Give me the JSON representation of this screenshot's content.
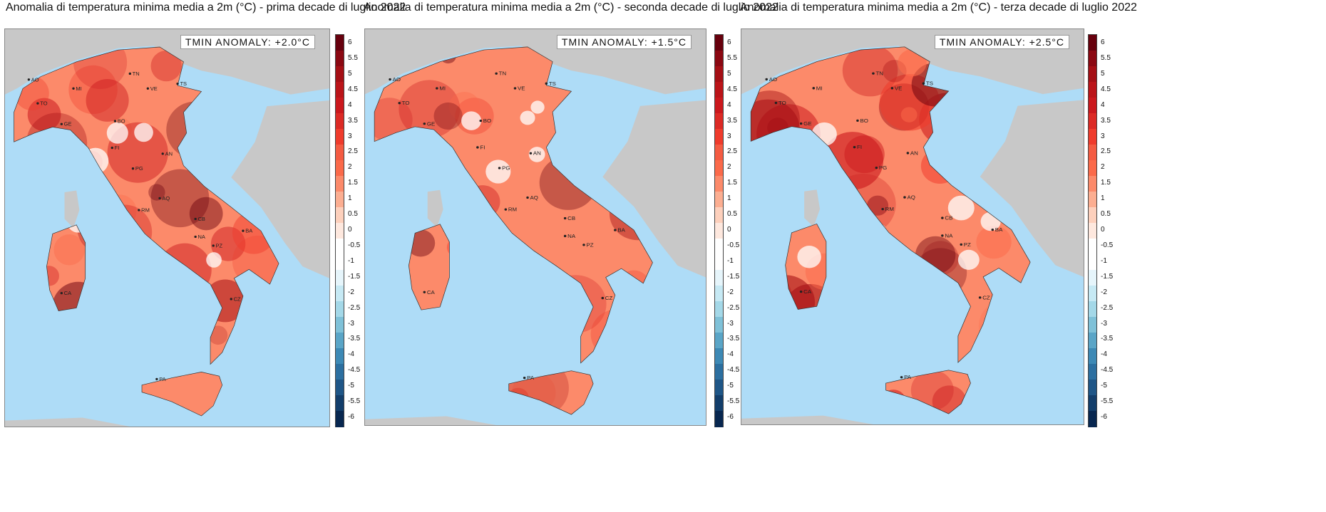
{
  "panels": [
    {
      "title": "Anomalia di temperatura minima media a 2m (°C) - prima decade di luglio 2022",
      "anomaly": "TMIN ANOMALY: +2.0°C",
      "intensity": 0.6
    },
    {
      "title": "Anomalia di temperatura minima media a 2m (°C) - seconda decade di luglio 2022",
      "anomaly": "TMIN ANOMALY: +1.5°C",
      "intensity": 0.45
    },
    {
      "title": "Anomalia di temperatura minima media a 2m (°C) - terza decade di luglio 2022",
      "anomaly": "TMIN ANOMALY: +2.5°C",
      "intensity": 0.75
    }
  ],
  "colorbar": {
    "ticks": [
      "6",
      "5.5",
      "5",
      "4.5",
      "4",
      "3.5",
      "3",
      "2.5",
      "2",
      "1.5",
      "1",
      "0.5",
      "0",
      "-0.5",
      "-1",
      "-1.5",
      "-2",
      "-2.5",
      "-3",
      "-3.5",
      "-4",
      "-4.5",
      "-5",
      "-5.5",
      "-6"
    ],
    "colors": [
      "#67000d",
      "#8b0812",
      "#a50f15",
      "#bb1419",
      "#cb181d",
      "#dc2a25",
      "#ef3b2c",
      "#f45b42",
      "#fb6a4a",
      "#fc8a6a",
      "#fcae91",
      "#fdd0bc",
      "#fee8de",
      "#ffffff",
      "#ffffff",
      "#e6f5fb",
      "#c6e9f4",
      "#a4d8e8",
      "#7fc1d8",
      "#5aa5c7",
      "#3d89b5",
      "#2c6fa0",
      "#1f5687",
      "#133e6b",
      "#082750"
    ]
  },
  "cities": [
    "AO",
    "TO",
    "MI",
    "TN",
    "VE",
    "TS",
    "GE",
    "BO",
    "FI",
    "AN",
    "PG",
    "AQ",
    "RM",
    "CB",
    "NA",
    "BA",
    "PZ",
    "CZ",
    "PA",
    "CA"
  ]
}
